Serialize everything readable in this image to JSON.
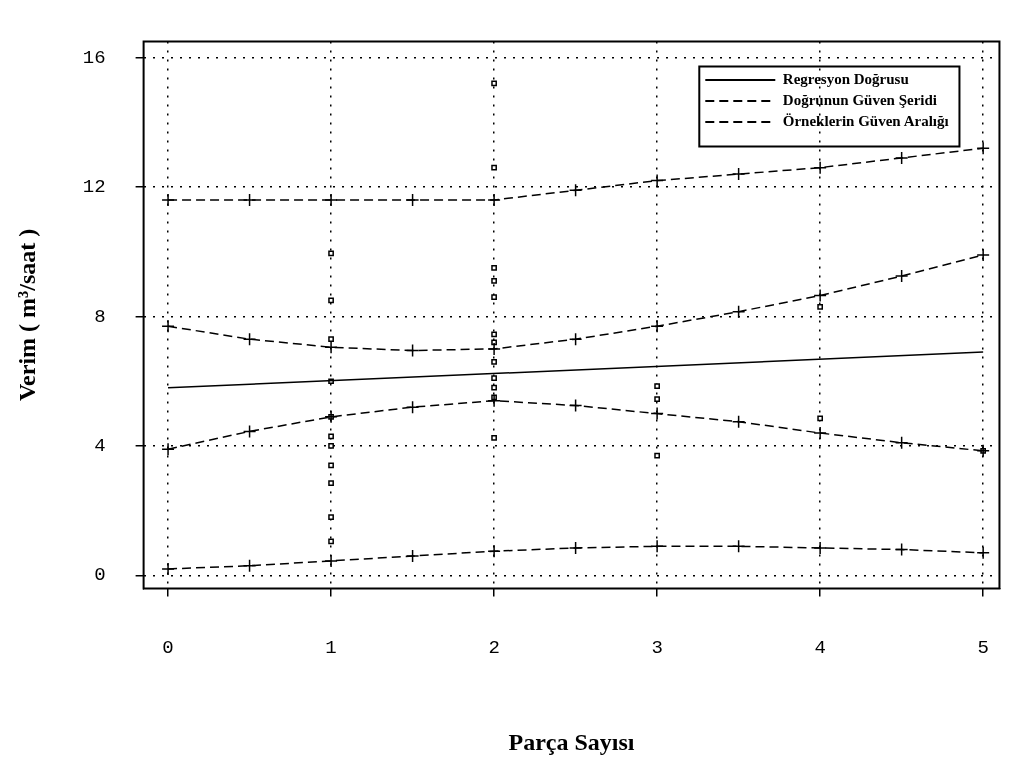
{
  "chart_data": {
    "type": "line",
    "xlabel": "Parça Sayısı",
    "ylabel": "Verim ( m³/saat )",
    "xlim": [
      -0.15,
      5.1
    ],
    "xticks": [
      0,
      1,
      2,
      3,
      4,
      5
    ],
    "ylim": [
      -0.4,
      16.5
    ],
    "yticks": [
      0,
      4,
      8,
      12,
      16
    ],
    "grid": true,
    "legend": "top right",
    "series": [
      {
        "name": "Regresyon Doğrusu",
        "color": "#000000",
        "marker": "none",
        "line_style": "solid",
        "x": [
          0,
          5
        ],
        "values": [
          5.8,
          6.9
        ]
      },
      {
        "name": "Doğrunun Güven Şeridi",
        "color": "#000000",
        "marker": "cross",
        "line_style": "dashed",
        "x": [
          0,
          0.5,
          1,
          1.5,
          2,
          2.5,
          3,
          3.5,
          4,
          4.5,
          5
        ],
        "values": [
          7.7,
          7.3,
          7.05,
          6.95,
          7.0,
          7.3,
          7.7,
          8.15,
          8.65,
          9.25,
          9.9
        ]
      },
      {
        "color": "#000000",
        "marker": "cross",
        "line_style": "dashed",
        "x": [
          0,
          0.5,
          1,
          1.5,
          2,
          2.5,
          3,
          3.5,
          4,
          4.5,
          5
        ],
        "values": [
          3.9,
          4.45,
          4.9,
          5.2,
          5.4,
          5.25,
          5.0,
          4.75,
          4.4,
          4.1,
          3.85
        ]
      },
      {
        "name": "Örneklerin Güven Aralığı",
        "color": "#000000",
        "marker": "cross",
        "line_style": "dashed",
        "x": [
          0,
          0.5,
          1,
          1.5,
          2,
          2.5,
          3,
          3.5,
          4,
          4.5,
          5
        ],
        "values": [
          11.6,
          11.6,
          11.6,
          11.6,
          11.6,
          11.9,
          12.2,
          12.4,
          12.6,
          12.9,
          13.2
        ]
      },
      {
        "color": "#000000",
        "marker": "cross",
        "line_style": "dashed",
        "x": [
          0,
          0.5,
          1,
          1.5,
          2,
          2.5,
          3,
          3.5,
          4,
          4.5,
          5
        ],
        "values": [
          0.2,
          0.3,
          0.45,
          0.6,
          0.75,
          0.85,
          0.9,
          0.9,
          0.85,
          0.8,
          0.7
        ]
      },
      {
        "type": "scatter",
        "color": "#000000",
        "marker": "square",
        "x": [
          1,
          1,
          1,
          1,
          1,
          1,
          1,
          1,
          1,
          1,
          1,
          2,
          2,
          2,
          2,
          2,
          2,
          2,
          2,
          2,
          2,
          2,
          2,
          3,
          3,
          3,
          4,
          4,
          5
        ],
        "values": [
          9.95,
          8.5,
          7.3,
          6.0,
          4.9,
          4.3,
          4.0,
          3.4,
          2.85,
          1.8,
          1.05,
          15.2,
          12.6,
          9.5,
          9.1,
          8.6,
          7.45,
          7.2,
          6.6,
          6.1,
          5.8,
          5.5,
          4.25,
          5.85,
          5.45,
          3.7,
          8.3,
          4.85,
          3.85
        ]
      }
    ]
  }
}
